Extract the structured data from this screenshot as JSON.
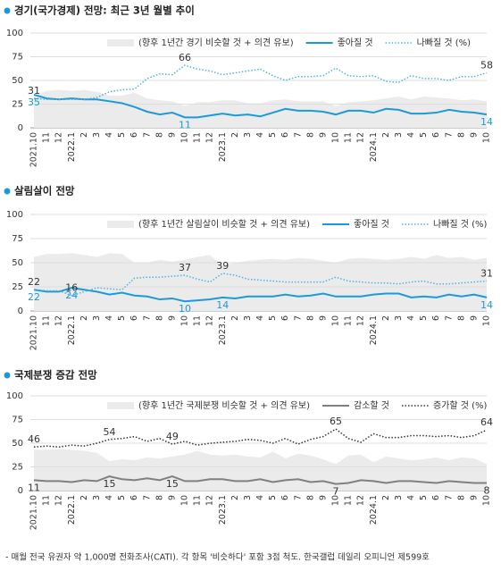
{
  "chart_data": [
    {
      "type": "line",
      "title": "경기(국가경제) 전망: 최근 3년 월별 추이",
      "categories": [
        "2021.10",
        "11",
        "12",
        "2022.1",
        "2",
        "3",
        "4",
        "5",
        "6",
        "7",
        "8",
        "9",
        "10",
        "11",
        "12",
        "2023.1",
        "2",
        "3",
        "4",
        "5",
        "6",
        "7",
        "8",
        "9",
        "10",
        "11",
        "12",
        "2024.1",
        "2",
        "3",
        "4",
        "5",
        "6",
        "7",
        "8",
        "9",
        "10"
      ],
      "ylim": [
        0,
        100
      ],
      "yticks": [
        0,
        25,
        50,
        75,
        100
      ],
      "grid": true,
      "series": [
        {
          "name": "(향후 1년간 경기 비슷할 것 + 의견 유보)",
          "kind": "area",
          "color": "#ebebeb",
          "values": [
            34,
            39,
            40,
            39,
            40,
            38,
            34,
            34,
            37,
            31,
            29,
            28,
            23,
            27,
            27,
            29,
            29,
            26,
            26,
            29,
            30,
            28,
            28,
            28,
            23,
            27,
            28,
            29,
            31,
            33,
            30,
            33,
            32,
            31,
            29,
            30,
            28
          ]
        },
        {
          "name": "좋아질 것",
          "kind": "line",
          "dashed": false,
          "color": "#1a9bd7",
          "label_color": "#1a9bd7",
          "label_side": "below",
          "label_indices": [
            0,
            12,
            36
          ],
          "values": [
            35,
            31,
            30,
            31,
            30,
            30,
            28,
            26,
            22,
            17,
            14,
            16,
            11,
            11,
            13,
            15,
            13,
            14,
            12,
            16,
            20,
            18,
            18,
            17,
            14,
            18,
            18,
            16,
            20,
            19,
            15,
            15,
            16,
            19,
            17,
            16,
            14
          ]
        },
        {
          "name": "나빠질 것 (%)",
          "kind": "line",
          "dashed": true,
          "color": "#4fb3e4",
          "label_color": "#333333",
          "label_side": "above",
          "label_indices": [
            0,
            12,
            36
          ],
          "values": [
            31,
            30,
            30,
            30,
            30,
            32,
            38,
            40,
            41,
            52,
            57,
            56,
            66,
            62,
            60,
            56,
            58,
            60,
            62,
            55,
            50,
            54,
            54,
            55,
            63,
            55,
            54,
            55,
            49,
            48,
            55,
            52,
            52,
            50,
            54,
            54,
            58
          ]
        }
      ]
    },
    {
      "type": "line",
      "title": "살림살이 전망",
      "categories": [
        "2021.10",
        "11",
        "12",
        "2022.1",
        "2",
        "3",
        "4",
        "5",
        "6",
        "7",
        "8",
        "9",
        "10",
        "11",
        "12",
        "2023.1",
        "2",
        "3",
        "4",
        "5",
        "6",
        "7",
        "8",
        "9",
        "10",
        "11",
        "12",
        "2024.1",
        "2",
        "3",
        "4",
        "5",
        "6",
        "7",
        "8",
        "9",
        "10"
      ],
      "ylim": [
        0,
        100
      ],
      "yticks": [
        0,
        25,
        50,
        75,
        100
      ],
      "grid": true,
      "series": [
        {
          "name": "(향후 1년간 살림살이 비슷할 것 + 의견 유보)",
          "kind": "area",
          "color": "#ebebeb",
          "values": [
            56,
            59,
            59,
            60,
            58,
            56,
            60,
            59,
            50,
            50,
            53,
            51,
            53,
            56,
            58,
            47,
            50,
            52,
            53,
            54,
            53,
            55,
            54,
            52,
            50,
            54,
            55,
            54,
            53,
            54,
            56,
            54,
            58,
            55,
            56,
            53,
            55
          ]
        },
        {
          "name": "좋아질 것",
          "kind": "line",
          "dashed": false,
          "color": "#1a9bd7",
          "label_color": "#1a9bd7",
          "label_side": "below",
          "label_indices": [
            0,
            3,
            12,
            15,
            36
          ],
          "values": [
            22,
            20,
            20,
            24,
            22,
            20,
            17,
            19,
            16,
            15,
            12,
            13,
            10,
            11,
            12,
            14,
            13,
            15,
            15,
            15,
            17,
            15,
            16,
            18,
            15,
            15,
            15,
            17,
            18,
            18,
            14,
            15,
            14,
            17,
            15,
            17,
            14
          ]
        },
        {
          "name": "나빠질 것 (%)",
          "kind": "line",
          "dashed": true,
          "color": "#4fb3e4",
          "label_color": "#333333",
          "label_side": "above",
          "label_indices": [
            0,
            3,
            12,
            15,
            36
          ],
          "values": [
            22,
            21,
            21,
            16,
            20,
            24,
            23,
            22,
            34,
            35,
            35,
            36,
            37,
            33,
            30,
            39,
            37,
            33,
            32,
            31,
            30,
            30,
            30,
            30,
            35,
            31,
            30,
            29,
            29,
            28,
            30,
            31,
            28,
            28,
            29,
            30,
            31
          ]
        }
      ]
    },
    {
      "type": "line",
      "title": "국제분쟁 증감 전망",
      "categories": [
        "2021.10",
        "11",
        "12",
        "2022.1",
        "2",
        "3",
        "4",
        "5",
        "6",
        "7",
        "8",
        "9",
        "10",
        "11",
        "12",
        "2023.1",
        "2",
        "3",
        "4",
        "5",
        "6",
        "7",
        "8",
        "9",
        "10",
        "11",
        "12",
        "2024.1",
        "2",
        "3",
        "4",
        "5",
        "6",
        "7",
        "8",
        "9",
        "10"
      ],
      "ylim": [
        0,
        100
      ],
      "yticks": [
        0,
        25,
        50,
        75,
        100
      ],
      "grid": true,
      "series": [
        {
          "name": "(향후 1년간 국제분쟁 비슷할 것 + 의견 유보)",
          "kind": "area",
          "color": "#ebebeb",
          "values": [
            43,
            43,
            44,
            43,
            42,
            40,
            31,
            33,
            32,
            35,
            34,
            36,
            38,
            42,
            38,
            37,
            38,
            36,
            35,
            41,
            34,
            39,
            37,
            33,
            28,
            37,
            38,
            30,
            36,
            34,
            32,
            33,
            35,
            32,
            35,
            34,
            28
          ]
        },
        {
          "name": "감소할 것",
          "kind": "line",
          "dashed": false,
          "color": "#808080",
          "label_color": "#333333",
          "label_side": "below",
          "label_indices": [
            0,
            6,
            11,
            24,
            36
          ],
          "values": [
            11,
            10,
            10,
            9,
            11,
            10,
            15,
            12,
            11,
            13,
            11,
            15,
            10,
            10,
            12,
            12,
            10,
            10,
            12,
            9,
            11,
            12,
            9,
            10,
            7,
            8,
            11,
            10,
            8,
            10,
            10,
            9,
            8,
            10,
            9,
            8,
            8
          ]
        },
        {
          "name": "증가할 것 (%)",
          "kind": "line",
          "dashed": true,
          "color": "#333333",
          "label_color": "#333333",
          "label_side": "above",
          "label_indices": [
            0,
            6,
            11,
            24,
            36
          ],
          "values": [
            46,
            47,
            46,
            48,
            47,
            50,
            54,
            55,
            57,
            52,
            55,
            49,
            52,
            48,
            50,
            51,
            52,
            54,
            53,
            50,
            55,
            49,
            54,
            57,
            65,
            55,
            51,
            60,
            56,
            56,
            58,
            58,
            57,
            58,
            56,
            58,
            64
          ]
        }
      ]
    }
  ],
  "footnote": "- 매월 전국 유권자 약 1,000명 전화조사(CATI). 각 항목 '비슷하다' 포함 3점 척도. 한국갤럽 데일리 오피니언 제599호"
}
